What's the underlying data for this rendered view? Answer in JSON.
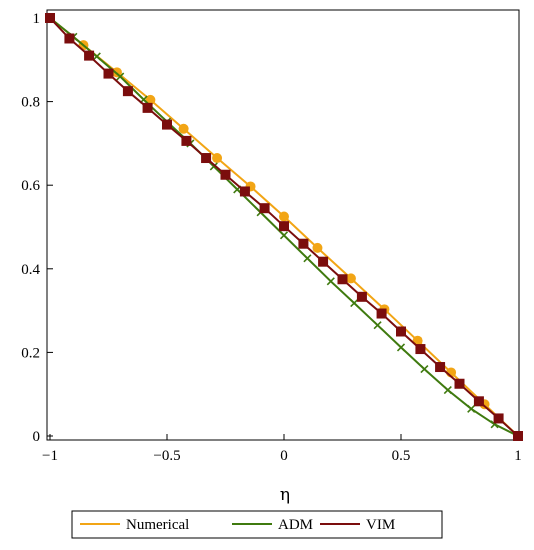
{
  "chart_data": {
    "type": "line",
    "title": "",
    "xlabel": "η",
    "ylabel": "",
    "xlim": [
      -1,
      1
    ],
    "ylim": [
      0,
      1
    ],
    "grid": false,
    "legend_position": "bottom",
    "x_ticks": [
      {
        "value": -1,
        "label": "−1"
      },
      {
        "value": -0.5,
        "label": "−0.5"
      },
      {
        "value": 0,
        "label": "0"
      },
      {
        "value": 0.5,
        "label": "0.5"
      },
      {
        "value": 1,
        "label": "1"
      }
    ],
    "y_ticks": [
      {
        "value": 0,
        "label": "0"
      },
      {
        "value": 0.2,
        "label": "0.2"
      },
      {
        "value": 0.4,
        "label": "0.4"
      },
      {
        "value": 0.6,
        "label": "0.6"
      },
      {
        "value": 0.8,
        "label": "0.8"
      },
      {
        "value": 1,
        "label": "1"
      }
    ],
    "series": [
      {
        "name": "Numerical",
        "color": "#f2a515",
        "marker": "circle",
        "x": [
          -1,
          -0.857,
          -0.714,
          -0.571,
          -0.429,
          -0.286,
          -0.143,
          0,
          0.143,
          0.286,
          0.429,
          0.571,
          0.714,
          0.857,
          1
        ],
        "y": [
          1,
          0.935,
          0.87,
          0.804,
          0.735,
          0.665,
          0.597,
          0.525,
          0.45,
          0.377,
          0.303,
          0.228,
          0.152,
          0.076,
          0
        ]
      },
      {
        "name": "ADM",
        "color": "#3f7a0f",
        "marker": "x",
        "x": [
          -1,
          -0.9,
          -0.8,
          -0.7,
          -0.6,
          -0.5,
          -0.4,
          -0.3,
          -0.2,
          -0.1,
          0,
          0.1,
          0.2,
          0.3,
          0.4,
          0.5,
          0.6,
          0.7,
          0.8,
          0.9,
          1
        ],
        "y": [
          1,
          0.955,
          0.908,
          0.86,
          0.805,
          0.752,
          0.7,
          0.645,
          0.59,
          0.535,
          0.48,
          0.425,
          0.37,
          0.318,
          0.265,
          0.212,
          0.16,
          0.11,
          0.065,
          0.028,
          0
        ]
      },
      {
        "name": "VIM",
        "color": "#7b0d0d",
        "marker": "square",
        "x": [
          -1,
          -0.917,
          -0.833,
          -0.75,
          -0.667,
          -0.583,
          -0.5,
          -0.417,
          -0.333,
          -0.25,
          -0.167,
          -0.083,
          0,
          0.083,
          0.167,
          0.25,
          0.333,
          0.417,
          0.5,
          0.583,
          0.667,
          0.75,
          0.833,
          0.917,
          1
        ],
        "y": [
          1,
          0.951,
          0.91,
          0.867,
          0.825,
          0.785,
          0.745,
          0.706,
          0.665,
          0.625,
          0.585,
          0.545,
          0.502,
          0.46,
          0.417,
          0.375,
          0.333,
          0.293,
          0.25,
          0.208,
          0.165,
          0.125,
          0.083,
          0.042,
          0
        ]
      }
    ]
  }
}
